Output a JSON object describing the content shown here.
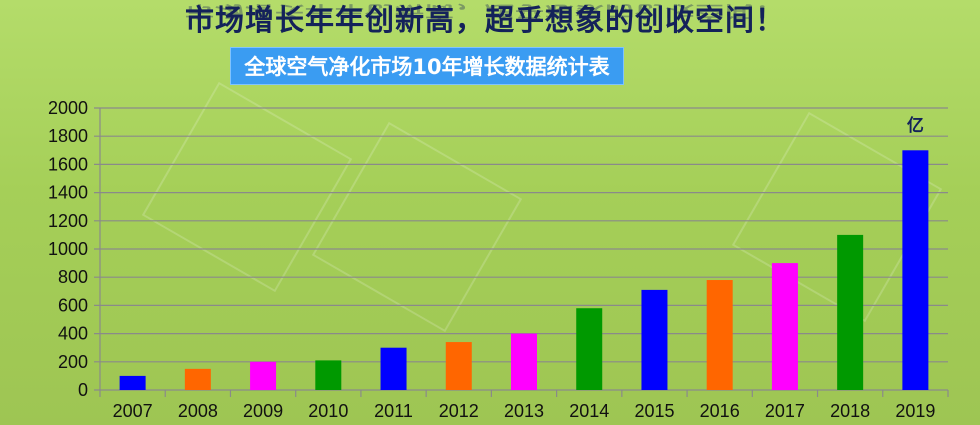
{
  "header": {
    "headline": "市场增长年年创新高，超乎想象的创收空间！",
    "subtitle": "全球空气净化市场10年增长数据统计表"
  },
  "chart_data": {
    "type": "bar",
    "title": "全球空气净化市场10年增长数据统计表",
    "unit_label": "亿",
    "xlabel": "",
    "ylabel": "",
    "ylim": [
      0,
      2000
    ],
    "yticks": [
      0,
      200,
      400,
      600,
      800,
      1000,
      1200,
      1400,
      1600,
      1800,
      2000
    ],
    "grid": true,
    "categories": [
      "2007",
      "2008",
      "2009",
      "2010",
      "2011",
      "2012",
      "2013",
      "2014",
      "2015",
      "2016",
      "2017",
      "2018",
      "2019"
    ],
    "values": [
      100,
      150,
      200,
      210,
      300,
      340,
      400,
      580,
      710,
      780,
      900,
      1100,
      1700
    ],
    "colors": [
      "#0000ff",
      "#ff6600",
      "#ff00ff",
      "#009900",
      "#0000ff",
      "#ff6600",
      "#ff00ff",
      "#009900",
      "#0000ff",
      "#ff6600",
      "#ff00ff",
      "#009900",
      "#0000ff"
    ]
  }
}
